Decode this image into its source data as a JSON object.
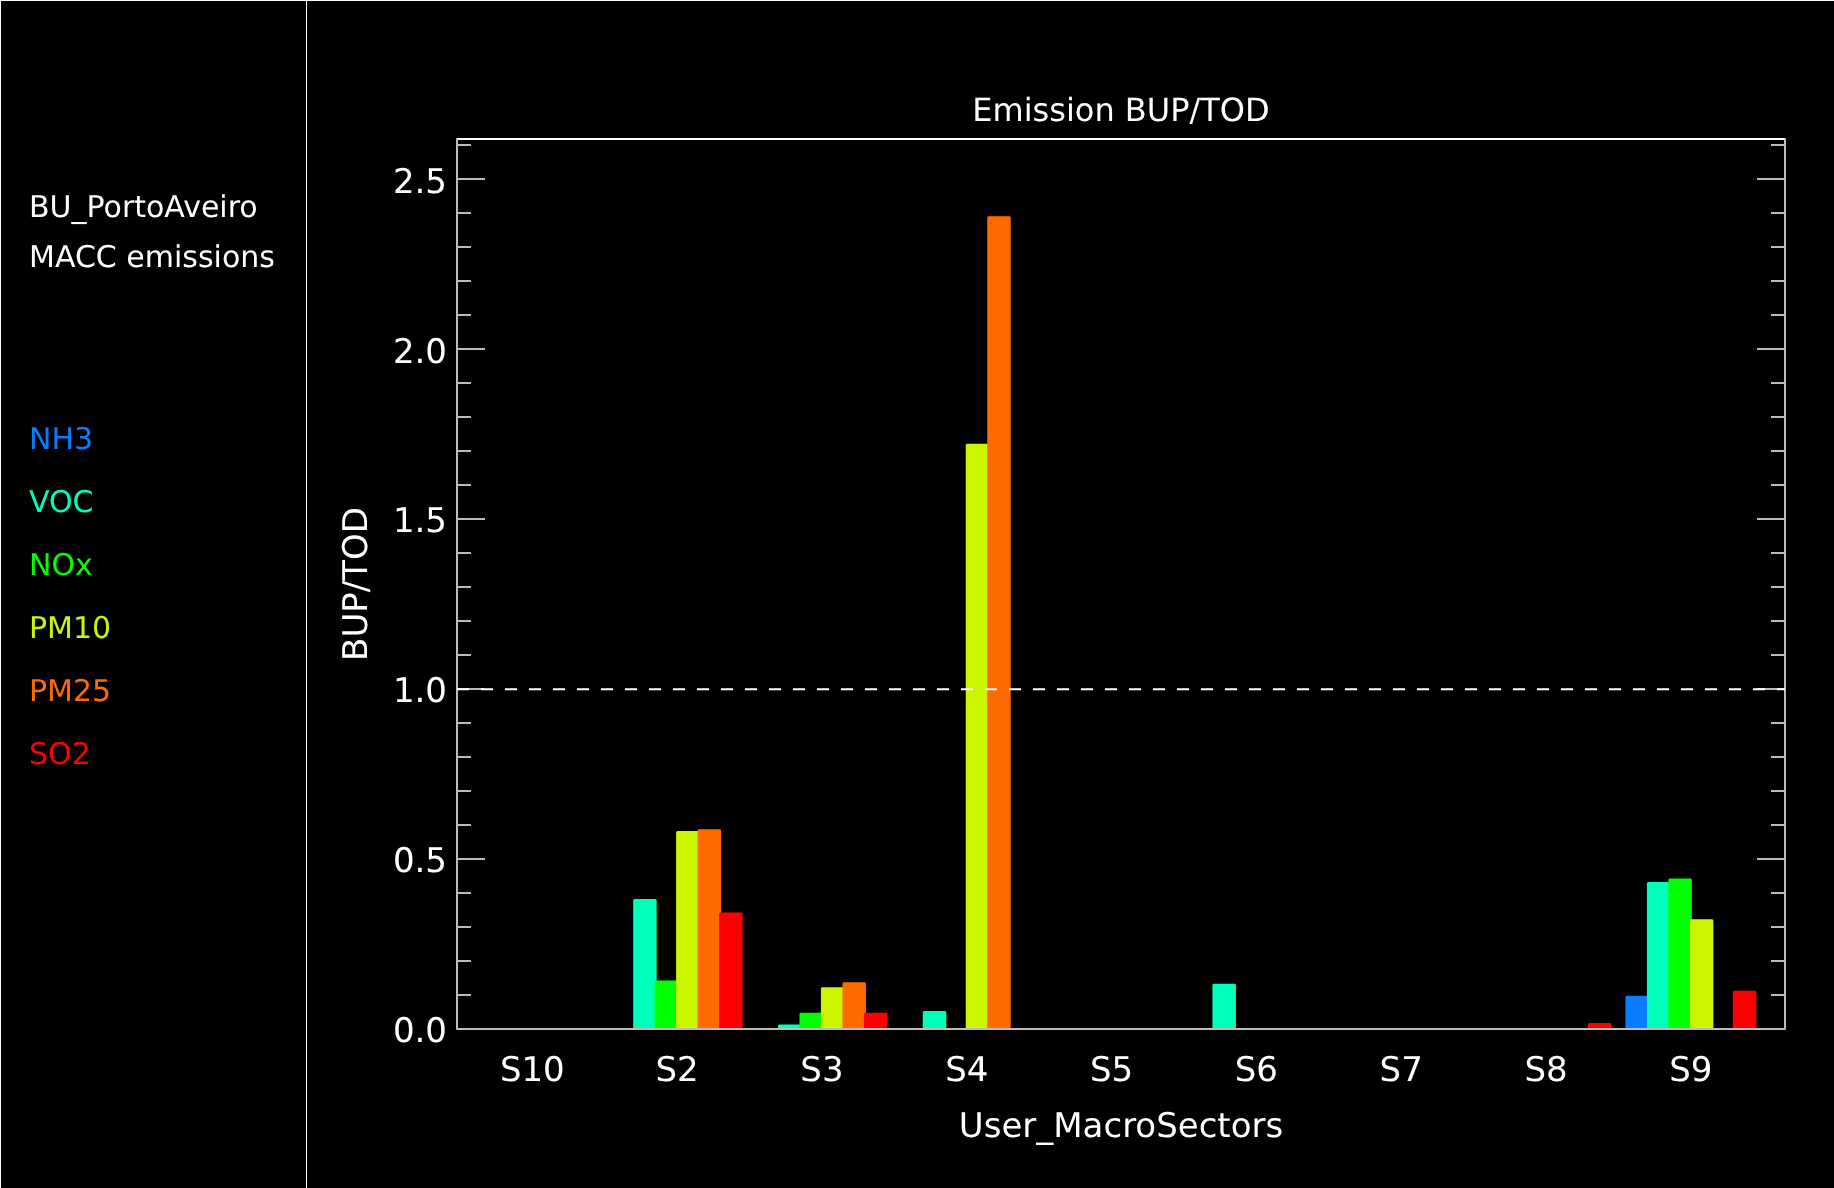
{
  "chart_data": {
    "type": "bar",
    "title": "Emission BUP/TOD",
    "xlabel": "User_MacroSectors",
    "ylabel": "BUP/TOD",
    "annotations": [
      "BU_PortoAveiro",
      "MACC emissions"
    ],
    "categories": [
      "S10",
      "S2",
      "S3",
      "S4",
      "S5",
      "S6",
      "S7",
      "S8",
      "S9"
    ],
    "series": [
      {
        "name": "NH3",
        "color": "#0a7cff",
        "values": [
          0,
          0,
          0,
          0,
          0,
          0,
          0,
          0,
          0.095
        ]
      },
      {
        "name": "VOC",
        "color": "#00ffbb",
        "values": [
          0,
          0.38,
          0.01,
          0.05,
          0,
          0.13,
          0,
          0,
          0.43
        ]
      },
      {
        "name": "NOx",
        "color": "#00ff00",
        "values": [
          0,
          0.14,
          0.045,
          0,
          0,
          0,
          0,
          0,
          0.44
        ]
      },
      {
        "name": "PM10",
        "color": "#ccf600",
        "values": [
          0,
          0.58,
          0.12,
          1.72,
          0,
          0,
          0,
          0,
          0.32
        ]
      },
      {
        "name": "PM25",
        "color": "#ff6a00",
        "values": [
          0,
          0.585,
          0.135,
          2.39,
          0,
          0,
          0,
          0,
          0
        ]
      },
      {
        "name": "SO2",
        "color": "#ff0000",
        "values": [
          0,
          0.34,
          0.045,
          0,
          0,
          0,
          0,
          0.015,
          0.11
        ]
      }
    ],
    "ylim": [
      0,
      2.62
    ],
    "yticks": [
      {
        "value": 0,
        "label": "0.0"
      },
      {
        "value": 0.5,
        "label": "0.5"
      },
      {
        "value": 1,
        "label": "1.0"
      },
      {
        "value": 1.5,
        "label": "1.5"
      },
      {
        "value": 2,
        "label": "2.0"
      },
      {
        "value": 2.5,
        "label": "2.5"
      }
    ],
    "ref_lines": [
      {
        "axis": "y",
        "value": 1,
        "label": null,
        "color": "#ffffff",
        "line_style": "dashed"
      }
    ],
    "grid": false
  }
}
